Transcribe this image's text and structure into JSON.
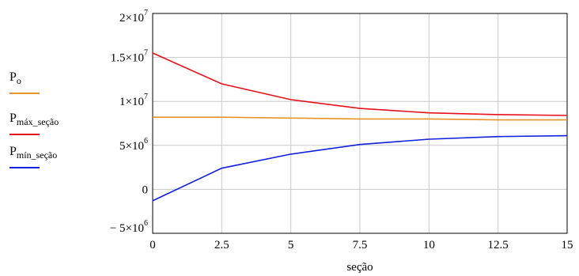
{
  "chart_data": {
    "type": "line",
    "xlabel": "seção",
    "ylabel": "",
    "xlim": [
      0,
      15
    ],
    "ylim": [
      -5000000,
      20000000
    ],
    "x": [
      0,
      2.5,
      5,
      7.5,
      10,
      12.5,
      15
    ],
    "x_tick_labels": [
      "0",
      "2.5",
      "5",
      "7.5",
      "10",
      "12.5",
      "15"
    ],
    "y_ticks": [
      {
        "value": 20000000,
        "label": "2×10",
        "exp": "7"
      },
      {
        "value": 15000000,
        "label": "1.5×10",
        "exp": "7"
      },
      {
        "value": 10000000,
        "label": "1×10",
        "exp": "7"
      },
      {
        "value": 5000000,
        "label": "5×10",
        "exp": "6"
      },
      {
        "value": 0,
        "label": "0",
        "exp": ""
      },
      {
        "value": -5000000,
        "label": "− 5×10",
        "exp": "6"
      }
    ],
    "grid": true,
    "legend_position": "left",
    "series": [
      {
        "name_main": "P",
        "name_sub": "o",
        "color": "#e8922a",
        "values": [
          8200000,
          8200000,
          8100000,
          8000000,
          8000000,
          7900000,
          7900000
        ]
      },
      {
        "name_main": "P",
        "name_sub": "máx_seção",
        "color": "#e8101a",
        "values": [
          15500000,
          12000000,
          10200000,
          9200000,
          8700000,
          8500000,
          8400000
        ]
      },
      {
        "name_main": "P",
        "name_sub": "mín_seção",
        "color": "#1020e0",
        "values": [
          -1300000,
          2400000,
          4000000,
          5100000,
          5700000,
          6000000,
          6100000
        ]
      }
    ]
  }
}
